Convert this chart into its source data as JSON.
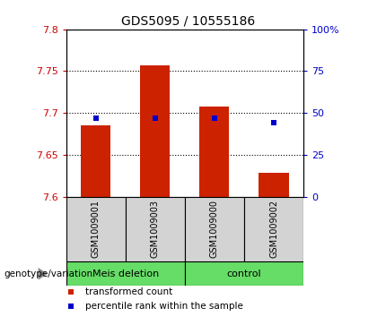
{
  "title": "GDS5095 / 10555186",
  "samples": [
    "GSM1009001",
    "GSM1009003",
    "GSM1009000",
    "GSM1009002"
  ],
  "red_bar_tops": [
    7.685,
    7.757,
    7.708,
    7.628
  ],
  "blue_marker_pct": [
    47,
    47,
    47,
    44
  ],
  "y_min": 7.6,
  "y_max": 7.8,
  "y_ticks": [
    7.6,
    7.65,
    7.7,
    7.75,
    7.8
  ],
  "y_tick_labels": [
    "7.6",
    "7.65",
    "7.7",
    "7.75",
    "7.8"
  ],
  "y2_ticks": [
    0,
    25,
    50,
    75,
    100
  ],
  "y2_tick_labels": [
    "0",
    "25",
    "50",
    "75",
    "100%"
  ],
  "left_tick_color": "#cc0000",
  "right_tick_color": "#0000cc",
  "bar_color": "#cc2200",
  "marker_color": "#0000cc",
  "sample_bg": "#d3d3d3",
  "group_bg": "#66dd66",
  "plot_bg": "#ffffff",
  "genotype_label": "genotype/variation",
  "legend_red": "transformed count",
  "legend_blue": "percentile rank within the sample",
  "marker_size": 4,
  "bar_width": 0.5
}
